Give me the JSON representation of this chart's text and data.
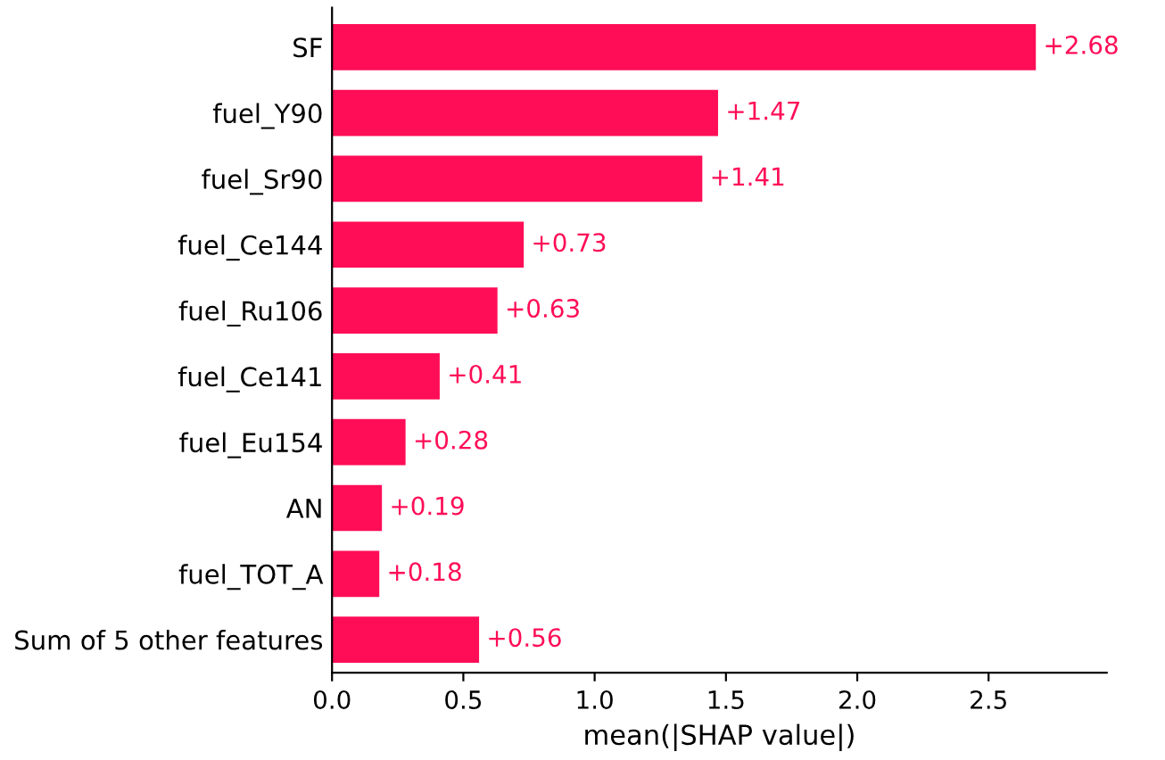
{
  "chart_data": {
    "type": "bar",
    "orientation": "horizontal",
    "xlabel": "mean(|SHAP value|)",
    "categories": [
      "SF",
      "fuel_Y90",
      "fuel_Sr90",
      "fuel_Ce144",
      "fuel_Ru106",
      "fuel_Ce141",
      "fuel_Eu154",
      "AN",
      "fuel_TOT_A",
      "Sum of 5 other features"
    ],
    "values": [
      2.68,
      1.47,
      1.41,
      0.73,
      0.63,
      0.41,
      0.28,
      0.19,
      0.18,
      0.56
    ],
    "value_labels": [
      "+2.68",
      "+1.47",
      "+1.41",
      "+0.73",
      "+0.63",
      "+0.41",
      "+0.28",
      "+0.19",
      "+0.18",
      "+0.56"
    ],
    "color": "#ff0d57",
    "xlim": [
      0,
      2.95
    ],
    "xticks": [
      {
        "value": 0,
        "label": "0.0"
      },
      {
        "value": 0.5,
        "label": "0.5"
      },
      {
        "value": 1,
        "label": "1.0"
      },
      {
        "value": 1.5,
        "label": "1.5"
      },
      {
        "value": 2,
        "label": "2.0"
      },
      {
        "value": 2.5,
        "label": "2.5"
      }
    ],
    "grid": false
  }
}
